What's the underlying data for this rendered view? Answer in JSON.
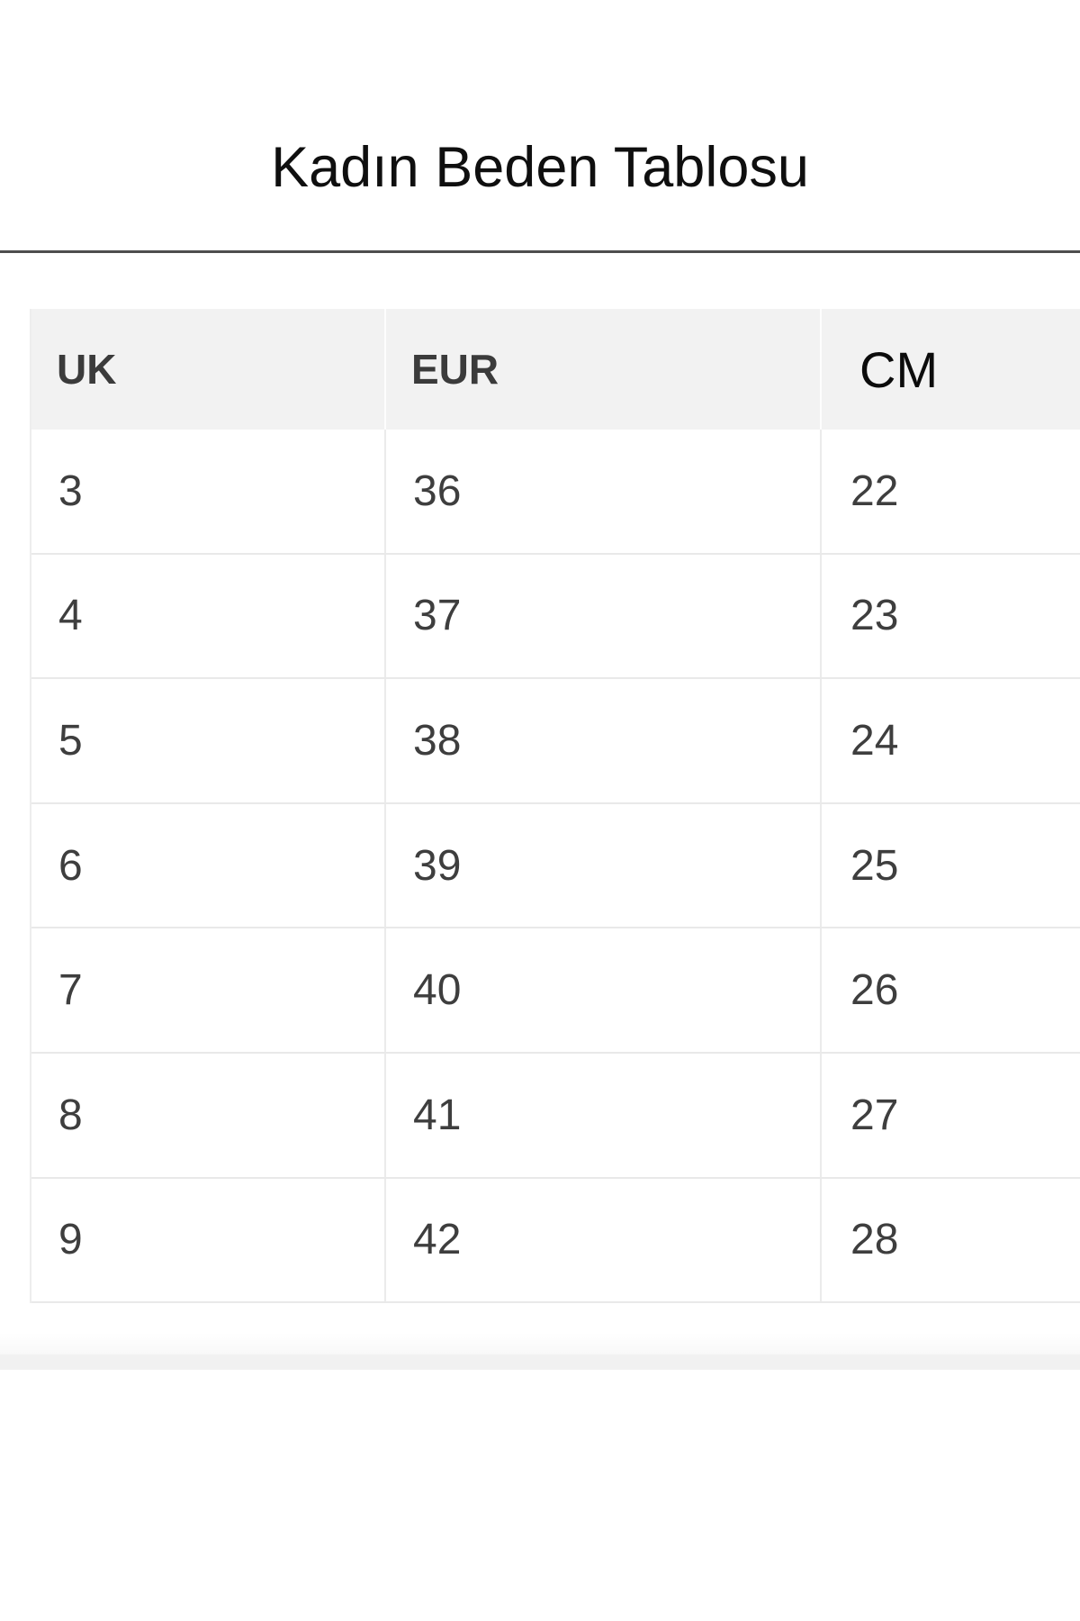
{
  "title": "Kadın Beden Tablosu",
  "table": {
    "headers": {
      "uk": "UK",
      "eur": "EUR",
      "cm": "CM"
    },
    "rows": [
      {
        "uk": "3",
        "eur": "36",
        "cm": "22"
      },
      {
        "uk": "4",
        "eur": "37",
        "cm": "23"
      },
      {
        "uk": "5",
        "eur": "38",
        "cm": "24"
      },
      {
        "uk": "6",
        "eur": "39",
        "cm": "25"
      },
      {
        "uk": "7",
        "eur": "40",
        "cm": "26"
      },
      {
        "uk": "8",
        "eur": "41",
        "cm": "27"
      },
      {
        "uk": "9",
        "eur": "42",
        "cm": "28"
      }
    ]
  },
  "colors": {
    "title_text": "#0f0f0f",
    "rule": "#4e4e4e",
    "header_bg": "#f2f2f2",
    "header_text": "#3b3b3b",
    "cm_header_text": "#0c0c0c",
    "cell_text": "#3e3e3e",
    "divider": "#e9e9e9",
    "bottom_strip": "#f1f1f1"
  }
}
